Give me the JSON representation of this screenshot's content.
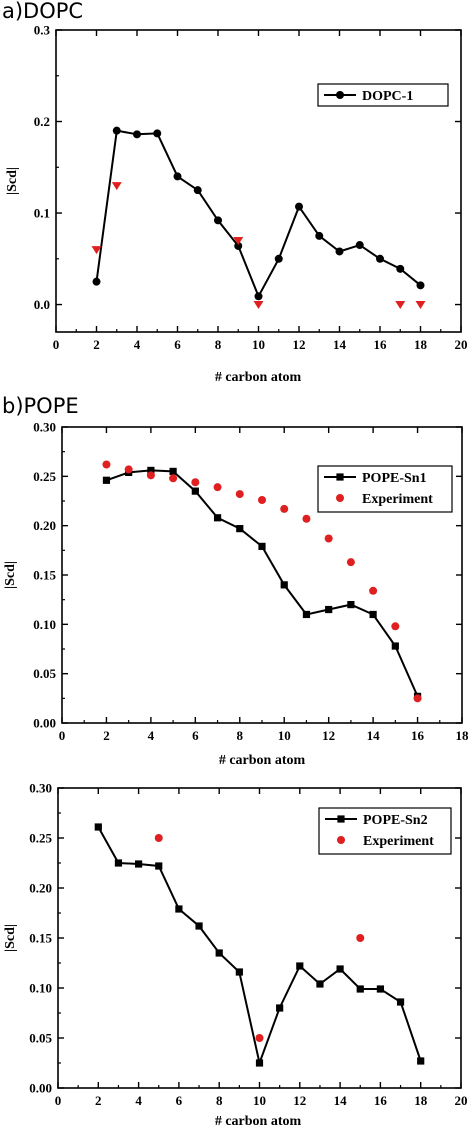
{
  "chart_data": [
    {
      "type": "line",
      "panel_label": "a)DOPC",
      "xlabel": "# carbon atom",
      "ylabel": "|Scd|",
      "xlim": [
        0,
        20
      ],
      "ylim": [
        -0.03,
        0.3
      ],
      "xticks": [
        "0",
        "2",
        "4",
        "6",
        "8",
        "10",
        "12",
        "14",
        "16",
        "18",
        "20"
      ],
      "xtick_values": [
        0,
        2,
        4,
        6,
        8,
        10,
        12,
        14,
        16,
        18,
        20
      ],
      "yticks": [
        "0.0",
        "0.1",
        "0.2",
        "0.3"
      ],
      "ytick_values": [
        0.0,
        0.1,
        0.2,
        0.3
      ],
      "legend_position": "top-right",
      "series": [
        {
          "name": "DOPC-1",
          "kind": "line",
          "marker": "circle",
          "color": "#000000",
          "x": [
            2,
            3,
            4,
            5,
            6,
            7,
            8,
            9,
            10,
            11,
            12,
            13,
            14,
            15,
            16,
            17,
            18
          ],
          "y": [
            0.025,
            0.19,
            0.186,
            0.187,
            0.14,
            0.125,
            0.092,
            0.064,
            0.009,
            0.05,
            0.107,
            0.075,
            0.058,
            0.065,
            0.05,
            0.039,
            0.021
          ]
        },
        {
          "kind": "scatter",
          "marker": "triangle-down",
          "color": "#e02020",
          "x": [
            2,
            3,
            9,
            10,
            17,
            18
          ],
          "y": [
            0.06,
            0.13,
            0.07,
            0.0,
            0.0,
            0.0
          ]
        }
      ]
    },
    {
      "type": "line",
      "panel_label": "b)POPE",
      "xlabel": "# carbon atom",
      "ylabel": "|Scd|",
      "xlim": [
        0,
        18
      ],
      "ylim": [
        0,
        0.3
      ],
      "xticks": [
        "0",
        "2",
        "4",
        "6",
        "8",
        "10",
        "12",
        "14",
        "16",
        "18"
      ],
      "xtick_values": [
        0,
        2,
        4,
        6,
        8,
        10,
        12,
        14,
        16,
        18
      ],
      "yticks": [
        "0.00",
        "0.05",
        "0.10",
        "0.15",
        "0.20",
        "0.25",
        "0.30"
      ],
      "ytick_values": [
        0,
        0.05,
        0.1,
        0.15,
        0.2,
        0.25,
        0.3
      ],
      "legend_position": "top-right",
      "series": [
        {
          "name": "POPE-Sn1",
          "kind": "line",
          "marker": "square",
          "color": "#000000",
          "x": [
            2,
            3,
            4,
            5,
            6,
            7,
            8,
            9,
            10,
            11,
            12,
            13,
            14,
            15,
            16
          ],
          "y": [
            0.246,
            0.254,
            0.256,
            0.255,
            0.235,
            0.208,
            0.197,
            0.179,
            0.14,
            0.11,
            0.115,
            0.12,
            0.11,
            0.078,
            0.027
          ]
        },
        {
          "name": "Experiment",
          "kind": "scatter",
          "marker": "circle",
          "color": "#e02020",
          "x": [
            2,
            3,
            4,
            5,
            6,
            7,
            8,
            9,
            10,
            11,
            12,
            13,
            14,
            15,
            16
          ],
          "y": [
            0.262,
            0.257,
            0.251,
            0.248,
            0.244,
            0.239,
            0.232,
            0.226,
            0.217,
            0.207,
            0.187,
            0.163,
            0.134,
            0.098,
            0.025
          ]
        }
      ]
    },
    {
      "type": "line",
      "panel_label": "",
      "xlabel": "# carbon atom",
      "ylabel": "|Scd|",
      "xlim": [
        0,
        20
      ],
      "ylim": [
        0,
        0.3
      ],
      "xticks": [
        "0",
        "2",
        "4",
        "6",
        "8",
        "10",
        "12",
        "14",
        "16",
        "18",
        "20"
      ],
      "xtick_values": [
        0,
        2,
        4,
        6,
        8,
        10,
        12,
        14,
        16,
        18,
        20
      ],
      "yticks": [
        "0.00",
        "0.05",
        "0.10",
        "0.15",
        "0.20",
        "0.25",
        "0.30"
      ],
      "ytick_values": [
        0,
        0.05,
        0.1,
        0.15,
        0.2,
        0.25,
        0.3
      ],
      "legend_position": "top-right",
      "series": [
        {
          "name": "POPE-Sn2",
          "kind": "line",
          "marker": "square",
          "color": "#000000",
          "x": [
            2,
            3,
            4,
            5,
            6,
            7,
            8,
            9,
            10,
            11,
            12,
            13,
            14,
            15,
            16,
            17,
            18
          ],
          "y": [
            0.261,
            0.225,
            0.224,
            0.222,
            0.179,
            0.162,
            0.135,
            0.116,
            0.025,
            0.08,
            0.122,
            0.104,
            0.119,
            0.099,
            0.099,
            0.086,
            0.027
          ]
        },
        {
          "name": "Experiment",
          "kind": "scatter",
          "marker": "circle",
          "color": "#e02020",
          "x": [
            5,
            10,
            15
          ],
          "y": [
            0.25,
            0.05,
            0.15
          ]
        }
      ]
    }
  ]
}
